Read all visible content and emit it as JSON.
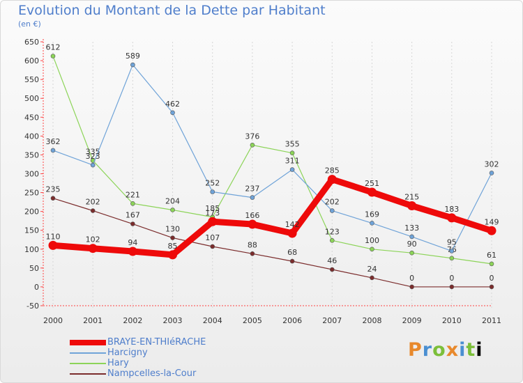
{
  "chart_data": {
    "type": "line",
    "title": "Evolution du Montant de la Dette par Habitant",
    "subtitle": "(en €)",
    "xlabel": "",
    "ylabel": "",
    "categories": [
      "2000",
      "2001",
      "2002",
      "2003",
      "2004",
      "2005",
      "2006",
      "2007",
      "2008",
      "2009",
      "2010",
      "2011"
    ],
    "ylim": [
      -50,
      650
    ],
    "yticks": [
      -50,
      0,
      50,
      100,
      150,
      200,
      250,
      300,
      350,
      400,
      450,
      500,
      550,
      600,
      650
    ],
    "legend_position": "bottom-left",
    "series": [
      {
        "name": "Nampcelles-la-Cour",
        "color": "#7b2c2c",
        "values": [
          235,
          202,
          167,
          130,
          107,
          88,
          68,
          46,
          24,
          0,
          0,
          0
        ]
      },
      {
        "name": "Hary",
        "color": "#8cd458",
        "values": [
          612,
          335,
          221,
          204,
          185,
          376,
          355,
          123,
          100,
          90,
          76,
          61
        ]
      },
      {
        "name": "Harcigny",
        "color": "#6fa3d8",
        "values": [
          362,
          323,
          589,
          462,
          252,
          237,
          311,
          202,
          169,
          133,
          95,
          302
        ]
      },
      {
        "name": "BRAYE-EN-THIéRACHE",
        "color": "#ee0a0a",
        "values": [
          110,
          102,
          94,
          85,
          173,
          166,
          142,
          285,
          251,
          215,
          183,
          149
        ]
      }
    ]
  },
  "legend": [
    {
      "label": "BRAYE-EN-THIéRACHE",
      "color": "#ee0a0a"
    },
    {
      "label": "Harcigny",
      "color": "#6fa3d8"
    },
    {
      "label": "Hary",
      "color": "#8cd458"
    },
    {
      "label": "Nampcelles-la-Cour",
      "color": "#7b2c2c"
    }
  ],
  "logo": {
    "text": "Proxiti"
  }
}
